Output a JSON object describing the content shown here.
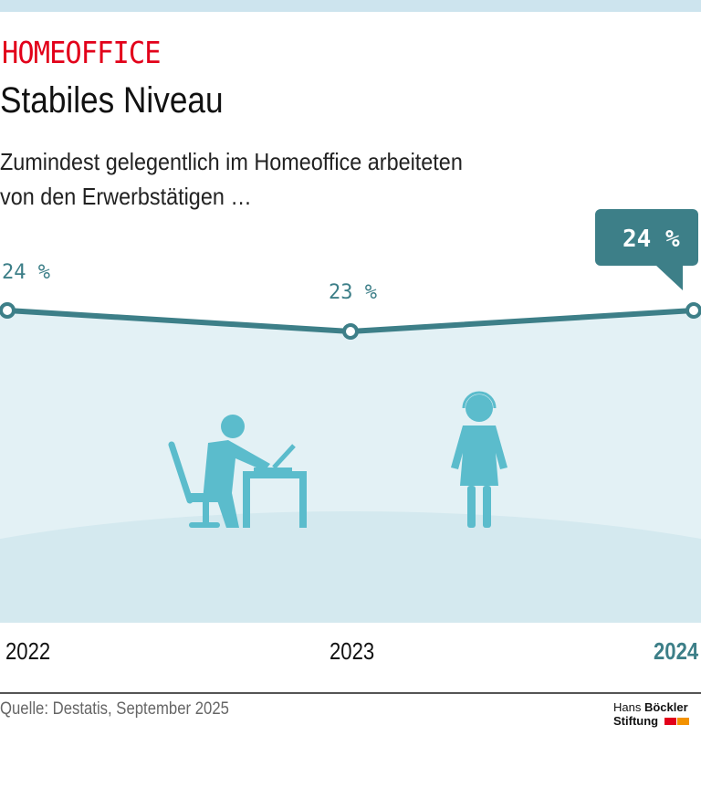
{
  "header": {
    "kicker": "HOMEOFFICE",
    "title": "Stabiles Niveau",
    "subtitle_line1": "Zumindest gelegentlich im Homeoffice arbeiteten",
    "subtitle_line2": "von den Erwerbstätigen …"
  },
  "chart_data": {
    "type": "line",
    "categories": [
      "2022",
      "2023",
      "2024"
    ],
    "values": [
      24,
      23,
      24
    ],
    "labels": [
      "24 %",
      "23 %",
      "24 %"
    ],
    "unit": "%",
    "highlight": "2024",
    "colors": {
      "line": "#3d7f88",
      "area": "#e3f1f5",
      "ground": "#d4e9ef",
      "icons": "#5bbccc",
      "highlight": "#3d7f88"
    }
  },
  "footer": {
    "source": "Quelle: Destatis, September 2025",
    "logo_line1_a": "Hans ",
    "logo_line1_b": "Böckler",
    "logo_line2": "Stiftung"
  },
  "icons": [
    "person-at-desk-icon",
    "person-with-headset-icon"
  ]
}
